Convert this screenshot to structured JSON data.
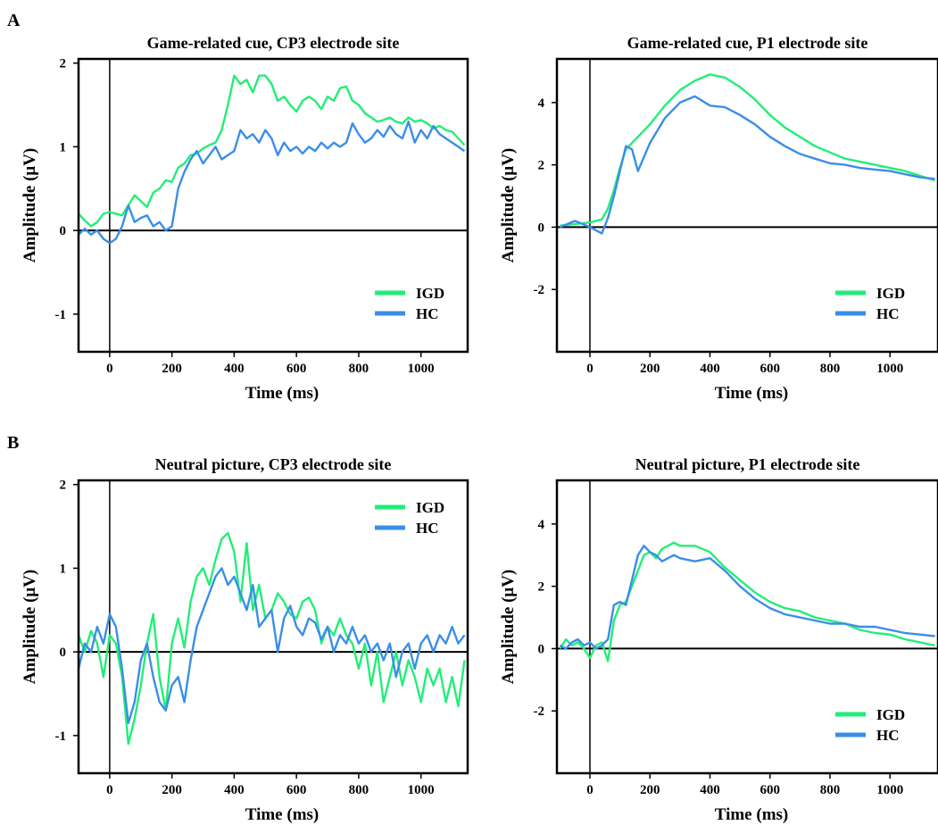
{
  "figure": {
    "panel_labels": [
      "A",
      "B"
    ]
  },
  "colors": {
    "IGD": "#22ee77",
    "HC": "#3a8ee8"
  },
  "chart_data": [
    {
      "type": "line",
      "panel": "A",
      "title": "Game-related cue, CP3 electrode site",
      "xlabel": "Time (ms)",
      "ylabel": "Amplitude (μV)",
      "xlim": [
        -100,
        1150
      ],
      "ylim": [
        -1.45,
        2.05
      ],
      "xticks": [
        0,
        200,
        400,
        600,
        800,
        1000
      ],
      "yticks": [
        -1,
        0,
        1,
        2
      ],
      "legend_position": "bottom-right",
      "series": [
        {
          "name": "IGD",
          "color": "#22ee77",
          "x": [
            -100,
            -80,
            -60,
            -40,
            -20,
            0,
            20,
            40,
            60,
            80,
            100,
            120,
            140,
            160,
            180,
            200,
            220,
            240,
            260,
            280,
            300,
            320,
            340,
            360,
            380,
            400,
            420,
            440,
            460,
            480,
            500,
            520,
            540,
            560,
            580,
            600,
            620,
            640,
            660,
            680,
            700,
            720,
            740,
            760,
            780,
            800,
            820,
            840,
            860,
            880,
            900,
            920,
            940,
            960,
            980,
            1000,
            1020,
            1040,
            1060,
            1080,
            1100,
            1120,
            1140
          ],
          "y": [
            0.2,
            0.12,
            0.05,
            0.1,
            0.2,
            0.22,
            0.2,
            0.18,
            0.3,
            0.42,
            0.35,
            0.28,
            0.45,
            0.5,
            0.6,
            0.58,
            0.75,
            0.8,
            0.9,
            0.92,
            0.98,
            1.02,
            1.05,
            1.2,
            1.5,
            1.85,
            1.75,
            1.8,
            1.65,
            1.85,
            1.85,
            1.75,
            1.55,
            1.6,
            1.5,
            1.42,
            1.55,
            1.6,
            1.55,
            1.45,
            1.6,
            1.55,
            1.7,
            1.72,
            1.55,
            1.5,
            1.4,
            1.35,
            1.3,
            1.32,
            1.35,
            1.3,
            1.28,
            1.35,
            1.3,
            1.32,
            1.28,
            1.22,
            1.25,
            1.2,
            1.18,
            1.1,
            1.02
          ]
        },
        {
          "name": "HC",
          "color": "#3a8ee8",
          "x": [
            -100,
            -80,
            -60,
            -40,
            -20,
            0,
            20,
            40,
            60,
            80,
            100,
            120,
            140,
            160,
            180,
            200,
            220,
            240,
            260,
            280,
            300,
            320,
            340,
            360,
            380,
            400,
            420,
            440,
            460,
            480,
            500,
            520,
            540,
            560,
            580,
            600,
            620,
            640,
            660,
            680,
            700,
            720,
            740,
            760,
            780,
            800,
            820,
            840,
            860,
            880,
            900,
            920,
            940,
            960,
            980,
            1000,
            1020,
            1040,
            1060,
            1080,
            1100,
            1120,
            1140
          ],
          "y": [
            -0.05,
            0.02,
            -0.05,
            0.0,
            -0.1,
            -0.15,
            -0.1,
            0.05,
            0.3,
            0.1,
            0.15,
            0.18,
            0.05,
            0.1,
            0.0,
            0.05,
            0.5,
            0.7,
            0.85,
            0.95,
            0.8,
            0.9,
            1.0,
            0.85,
            0.9,
            0.95,
            1.2,
            1.1,
            1.15,
            1.05,
            1.2,
            1.1,
            0.9,
            1.05,
            0.95,
            1.0,
            0.92,
            1.0,
            0.95,
            1.05,
            0.98,
            1.05,
            1.0,
            1.05,
            1.28,
            1.15,
            1.05,
            1.1,
            1.2,
            1.12,
            1.25,
            1.15,
            1.1,
            1.3,
            1.05,
            1.2,
            1.1,
            1.25,
            1.15,
            1.1,
            1.05,
            1.0,
            0.95
          ]
        }
      ]
    },
    {
      "type": "line",
      "panel": "A",
      "title": "Game-related cue, P1 electrode site",
      "xlabel": "Time (ms)",
      "ylabel": "Amplitude (μV)",
      "xlim": [
        -110,
        1160
      ],
      "ylim": [
        -4.0,
        5.4
      ],
      "xticks": [
        0,
        200,
        400,
        600,
        800,
        1000
      ],
      "yticks": [
        -2,
        0,
        2,
        4
      ],
      "legend_position": "bottom-right",
      "series": [
        {
          "name": "IGD",
          "color": "#22ee77",
          "x": [
            -100,
            -50,
            0,
            20,
            40,
            60,
            80,
            100,
            120,
            150,
            200,
            250,
            300,
            350,
            400,
            450,
            500,
            550,
            600,
            650,
            700,
            750,
            800,
            850,
            900,
            950,
            1000,
            1050,
            1100,
            1150
          ],
          "y": [
            0.05,
            0.1,
            0.15,
            0.2,
            0.25,
            0.6,
            1.2,
            1.9,
            2.5,
            2.8,
            3.3,
            3.9,
            4.4,
            4.7,
            4.9,
            4.8,
            4.5,
            4.1,
            3.6,
            3.2,
            2.9,
            2.6,
            2.4,
            2.2,
            2.1,
            2.0,
            1.9,
            1.8,
            1.65,
            1.5
          ]
        },
        {
          "name": "HC",
          "color": "#3a8ee8",
          "x": [
            -100,
            -50,
            0,
            20,
            40,
            60,
            80,
            100,
            120,
            140,
            160,
            200,
            250,
            300,
            350,
            400,
            450,
            500,
            550,
            600,
            650,
            700,
            750,
            800,
            850,
            900,
            950,
            1000,
            1050,
            1100,
            1150
          ],
          "y": [
            0.0,
            0.2,
            0.0,
            -0.1,
            -0.2,
            0.3,
            1.0,
            1.8,
            2.6,
            2.5,
            1.8,
            2.7,
            3.5,
            4.0,
            4.2,
            3.9,
            3.85,
            3.6,
            3.3,
            2.9,
            2.6,
            2.35,
            2.2,
            2.05,
            2.0,
            1.9,
            1.85,
            1.8,
            1.7,
            1.6,
            1.55
          ]
        }
      ]
    },
    {
      "type": "line",
      "panel": "B",
      "title": "Neutral picture, CP3 electrode site",
      "xlabel": "Time (ms)",
      "ylabel": "Amplitude (μV)",
      "xlim": [
        -100,
        1150
      ],
      "ylim": [
        -1.45,
        2.05
      ],
      "xticks": [
        0,
        200,
        400,
        600,
        800,
        1000
      ],
      "yticks": [
        -1,
        0,
        1,
        2
      ],
      "legend_position": "top-right",
      "series": [
        {
          "name": "IGD",
          "color": "#22ee77",
          "x": [
            -100,
            -80,
            -60,
            -40,
            -20,
            0,
            20,
            40,
            60,
            80,
            100,
            120,
            140,
            160,
            180,
            200,
            220,
            240,
            260,
            280,
            300,
            320,
            340,
            360,
            380,
            400,
            420,
            440,
            460,
            480,
            500,
            520,
            540,
            560,
            580,
            600,
            620,
            640,
            660,
            680,
            700,
            720,
            740,
            760,
            780,
            800,
            820,
            840,
            860,
            880,
            900,
            920,
            940,
            960,
            980,
            1000,
            1020,
            1040,
            1060,
            1080,
            1100,
            1120,
            1140
          ],
          "y": [
            0.2,
            0.0,
            0.25,
            0.1,
            -0.3,
            0.2,
            0.1,
            -0.3,
            -1.1,
            -0.8,
            -0.4,
            0.1,
            0.45,
            -0.3,
            -0.7,
            0.1,
            0.4,
            0.05,
            0.6,
            0.9,
            1.0,
            0.8,
            1.1,
            1.35,
            1.42,
            1.2,
            0.6,
            1.3,
            0.5,
            0.8,
            0.4,
            0.5,
            0.7,
            0.6,
            0.45,
            0.4,
            0.6,
            0.65,
            0.5,
            0.1,
            0.3,
            0.2,
            0.4,
            0.2,
            0.1,
            -0.2,
            0.1,
            -0.4,
            0.0,
            -0.6,
            -0.3,
            0.0,
            -0.4,
            -0.1,
            -0.3,
            -0.6,
            -0.2,
            -0.4,
            -0.2,
            -0.6,
            -0.3,
            -0.65,
            -0.1
          ]
        },
        {
          "name": "HC",
          "color": "#3a8ee8",
          "x": [
            -100,
            -80,
            -60,
            -40,
            -20,
            0,
            20,
            40,
            60,
            80,
            100,
            120,
            140,
            160,
            180,
            200,
            220,
            240,
            260,
            280,
            300,
            320,
            340,
            360,
            380,
            400,
            420,
            440,
            460,
            480,
            500,
            520,
            540,
            560,
            580,
            600,
            620,
            640,
            660,
            680,
            700,
            720,
            740,
            760,
            780,
            800,
            820,
            840,
            860,
            880,
            900,
            920,
            940,
            960,
            980,
            1000,
            1020,
            1040,
            1060,
            1080,
            1100,
            1120,
            1140
          ],
          "y": [
            -0.2,
            0.1,
            0.0,
            0.3,
            0.1,
            0.45,
            0.3,
            -0.2,
            -0.85,
            -0.6,
            -0.1,
            0.1,
            -0.3,
            -0.6,
            -0.7,
            -0.4,
            -0.3,
            -0.6,
            -0.1,
            0.3,
            0.5,
            0.7,
            0.9,
            1.0,
            0.8,
            0.9,
            0.7,
            0.5,
            0.8,
            0.3,
            0.4,
            0.5,
            0.0,
            0.4,
            0.55,
            0.3,
            0.2,
            0.4,
            0.35,
            0.15,
            0.3,
            0.0,
            0.2,
            0.1,
            0.3,
            0.1,
            0.2,
            0.0,
            0.1,
            -0.1,
            0.1,
            -0.3,
            0.0,
            0.1,
            -0.2,
            0.1,
            0.2,
            0.0,
            0.2,
            0.1,
            0.3,
            0.1,
            0.2
          ]
        }
      ]
    },
    {
      "type": "line",
      "panel": "B",
      "title": "Neutral picture, P1 electrode site",
      "xlabel": "Time (ms)",
      "ylabel": "Amplitude (μV)",
      "xlim": [
        -110,
        1160
      ],
      "ylim": [
        -4.0,
        5.4
      ],
      "xticks": [
        0,
        200,
        400,
        600,
        800,
        1000
      ],
      "yticks": [
        -2,
        0,
        2,
        4
      ],
      "legend_position": "bottom-right",
      "series": [
        {
          "name": "IGD",
          "color": "#22ee77",
          "x": [
            -100,
            -80,
            -60,
            -40,
            -20,
            0,
            20,
            40,
            60,
            80,
            100,
            120,
            140,
            160,
            180,
            200,
            220,
            240,
            260,
            280,
            300,
            350,
            400,
            450,
            500,
            550,
            600,
            650,
            700,
            750,
            800,
            850,
            900,
            950,
            1000,
            1050,
            1100,
            1150
          ],
          "y": [
            0.0,
            0.3,
            0.1,
            0.2,
            0.0,
            -0.3,
            0.1,
            0.2,
            -0.4,
            0.9,
            1.4,
            1.5,
            2.0,
            2.5,
            3.0,
            3.1,
            2.9,
            3.2,
            3.3,
            3.4,
            3.3,
            3.3,
            3.1,
            2.6,
            2.2,
            1.8,
            1.5,
            1.3,
            1.2,
            1.0,
            0.9,
            0.8,
            0.6,
            0.5,
            0.45,
            0.3,
            0.2,
            0.1
          ]
        },
        {
          "name": "HC",
          "color": "#3a8ee8",
          "x": [
            -100,
            -80,
            -60,
            -40,
            -20,
            0,
            20,
            40,
            60,
            80,
            100,
            120,
            140,
            160,
            180,
            200,
            220,
            240,
            260,
            280,
            300,
            350,
            400,
            450,
            500,
            550,
            600,
            650,
            700,
            750,
            800,
            850,
            900,
            950,
            1000,
            1050,
            1100,
            1150
          ],
          "y": [
            0.1,
            0.0,
            0.2,
            0.3,
            0.1,
            0.2,
            0.0,
            0.1,
            0.3,
            1.4,
            1.5,
            1.4,
            2.2,
            3.0,
            3.3,
            3.1,
            3.0,
            2.8,
            2.9,
            3.0,
            2.9,
            2.8,
            2.9,
            2.5,
            2.0,
            1.6,
            1.3,
            1.1,
            1.0,
            0.9,
            0.8,
            0.8,
            0.7,
            0.7,
            0.6,
            0.5,
            0.45,
            0.4
          ]
        }
      ]
    }
  ]
}
